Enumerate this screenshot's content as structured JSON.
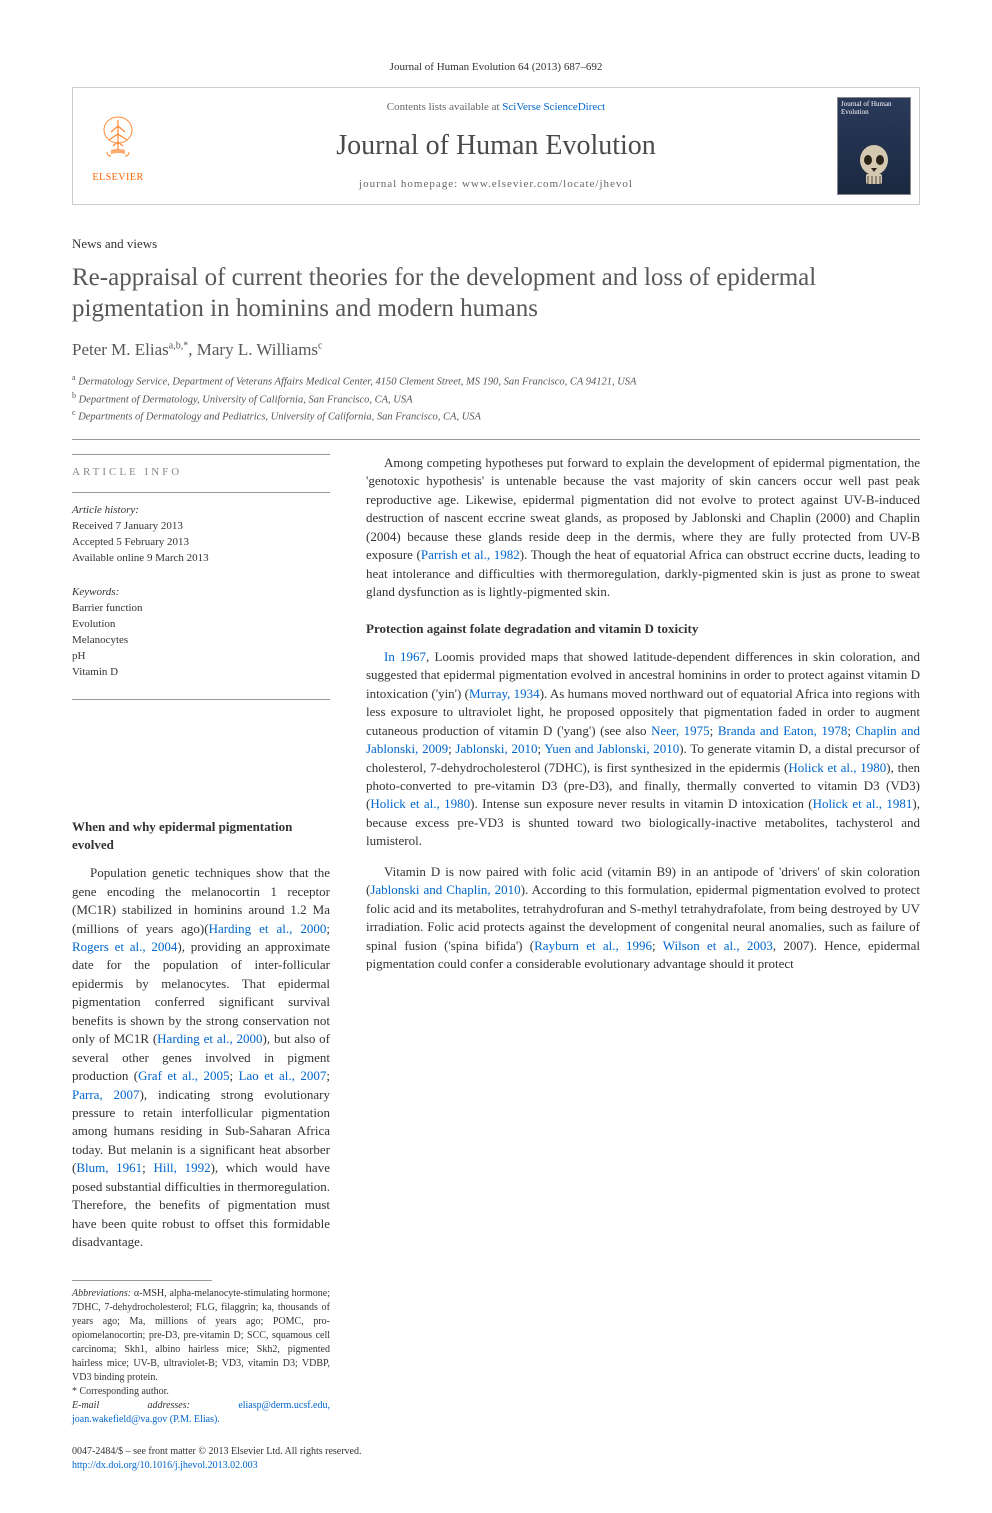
{
  "citation": "Journal of Human Evolution 64 (2013) 687–692",
  "header": {
    "contents_prefix": "Contents lists available at ",
    "contents_link": "SciVerse ScienceDirect",
    "journal_name": "Journal of Human Evolution",
    "homepage_prefix": "journal homepage: ",
    "homepage_url": "www.elsevier.com/locate/jhevol",
    "publisher": "ELSEVIER",
    "cover_title": "Journal of Human Evolution"
  },
  "article": {
    "type": "News and views",
    "title": "Re-appraisal of current theories for the development and loss of epidermal pigmentation in hominins and modern humans",
    "authors_html": "Peter M. Elias",
    "author1_sup": "a,b,",
    "author1_star": "*",
    "author2": ", Mary L. Williams",
    "author2_sup": "c",
    "affiliations": [
      {
        "sup": "a",
        "text": "Dermatology Service, Department of Veterans Affairs Medical Center, 4150 Clement Street, MS 190, San Francisco, CA 94121, USA"
      },
      {
        "sup": "b",
        "text": "Department of Dermatology, University of California, San Francisco, CA, USA"
      },
      {
        "sup": "c",
        "text": "Departments of Dermatology and Pediatrics, University of California, San Francisco, CA, USA"
      }
    ]
  },
  "info": {
    "heading": "ARTICLE INFO",
    "history_label": "Article history:",
    "received": "Received 7 January 2013",
    "accepted": "Accepted 5 February 2013",
    "online": "Available online 9 March 2013",
    "keywords_label": "Keywords:",
    "keywords": [
      "Barrier function",
      "Evolution",
      "Melanocytes",
      "pH",
      "Vitamin D"
    ]
  },
  "sections": {
    "s1_heading": "When and why epidermal pigmentation evolved",
    "s1_p1": "Population genetic techniques show that the gene encoding the melanocortin 1 receptor (MC1R) stabilized in hominins around 1.2 Ma (millions of years ago)(Harding et al., 2000; Rogers et al., 2004), providing an approximate date for the population of inter-follicular epidermis by melanocytes. That epidermal pigmentation conferred significant survival benefits is shown by the strong conservation not only of MC1R (Harding et al., 2000), but also of several other genes involved in pigment production (Graf et al., 2005; Lao et al., 2007; Parra, 2007), indicating strong evolutionary pressure to retain interfollicular pigmentation among humans residing in Sub-Saharan Africa today. But melanin is a significant heat absorber (Blum, 1961; Hill, 1992), which would have posed substantial difficulties in thermoregulation. Therefore, the benefits of pigmentation must have been quite robust to offset this formidable disadvantage.",
    "s2_p1": "Among competing hypotheses put forward to explain the development of epidermal pigmentation, the 'genotoxic hypothesis' is untenable because the vast majority of skin cancers occur well past peak reproductive age. Likewise, epidermal pigmentation did not evolve to protect against UV-B-induced destruction of nascent eccrine sweat glands, as proposed by Jablonski and Chaplin (2000) and Chaplin (2004) because these glands reside deep in the dermis, where they are fully protected from UV-B exposure (Parrish et al., 1982). Though the heat of equatorial Africa can obstruct eccrine ducts, leading to heat intolerance and difficulties with thermoregulation, darkly-pigmented skin is just as prone to sweat gland dysfunction as is lightly-pigmented skin.",
    "s3_heading": "Protection against folate degradation and vitamin D toxicity",
    "s3_p1": "In 1967, Loomis provided maps that showed latitude-dependent differences in skin coloration, and suggested that epidermal pigmentation evolved in ancestral hominins in order to protect against vitamin D intoxication ('yin') (Murray, 1934). As humans moved northward out of equatorial Africa into regions with less exposure to ultraviolet light, he proposed oppositely that pigmentation faded in order to augment cutaneous production of vitamin D ('yang') (see also Neer, 1975; Branda and Eaton, 1978; Chaplin and Jablonski, 2009; Jablonski, 2010; Yuen and Jablonski, 2010). To generate vitamin D, a distal precursor of cholesterol, 7-dehydrocholesterol (7DHC), is first synthesized in the epidermis (Holick et al., 1980), then photo-converted to pre-vitamin D3 (pre-D3), and finally, thermally converted to vitamin D3 (VD3) (Holick et al., 1980). Intense sun exposure never results in vitamin D intoxication (Holick et al., 1981), because excess pre-VD3 is shunted toward two biologically-inactive metabolites, tachysterol and lumisterol.",
    "s3_p2": "Vitamin D is now paired with folic acid (vitamin B9) in an antipode of 'drivers' of skin coloration (Jablonski and Chaplin, 2010). According to this formulation, epidermal pigmentation evolved to protect folic acid and its metabolites, tetrahydrofuran and S-methyl tetrahydrafolate, from being destroyed by UV irradiation. Folic acid protects against the development of congenital neural anomalies, such as failure of spinal fusion ('spina bifida') (Rayburn et al., 1996; Wilson et al., 2003, 2007). Hence, epidermal pigmentation could confer a considerable evolutionary advantage should it protect"
  },
  "footnotes": {
    "abbrev_label": "Abbreviations:",
    "abbrev_text": " α-MSH, alpha-melanocyte-stimulating hormone; 7DHC, 7-dehydrocholesterol; FLG, filaggrin; ka, thousands of years ago; Ma, millions of years ago; POMC, pro-opiomelanocortin; pre-D3, pre-vitamin D; SCC, squamous cell carcinoma; Skh1, albino hairless mice; Skh2, pigmented hairless mice; UV-B, ultraviolet-B; VD3, vitamin D3; VDBP, VD3 binding protein.",
    "corresp": "* Corresponding author.",
    "email_label": "E-mail addresses:",
    "emails": " eliasp@derm.ucsf.edu, joan.wakefield@va.gov (P.M. Elias).",
    "copyright": "0047-2484/$ – see front matter © 2013 Elsevier Ltd. All rights reserved.",
    "doi": "http://dx.doi.org/10.1016/j.jhevol.2013.02.003"
  },
  "colors": {
    "link": "#0066cc",
    "orange": "#ff6600",
    "heading": "#585858",
    "border": "#cccccc",
    "rule": "#999999"
  }
}
